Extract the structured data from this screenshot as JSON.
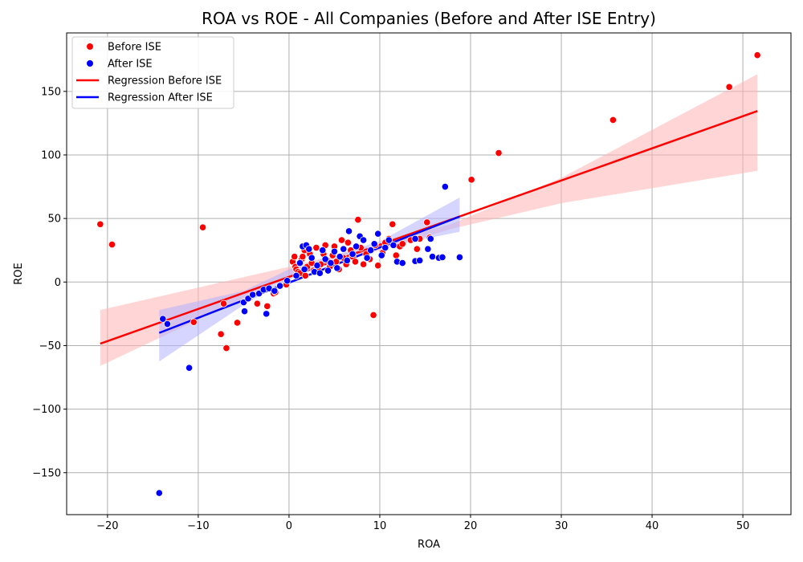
{
  "chart_data": {
    "type": "scatter",
    "title": "ROA vs ROE - All Companies (Before and After ISE Entry)",
    "xlabel": "ROA",
    "ylabel": "ROE",
    "xlim": [
      -24.5,
      55.3
    ],
    "ylim": [
      -183,
      196
    ],
    "xticks": [
      -20,
      -10,
      0,
      10,
      20,
      30,
      40,
      50
    ],
    "yticks": [
      -150,
      -100,
      -50,
      0,
      50,
      100,
      150
    ],
    "xtick_labels": [
      "−20",
      "−10",
      "0",
      "10",
      "20",
      "30",
      "40",
      "50"
    ],
    "ytick_labels": [
      "−150",
      "−100",
      "−50",
      "0",
      "50",
      "100",
      "150"
    ],
    "grid": true,
    "legend_position": "top-left",
    "legend": [
      {
        "label": "Before ISE",
        "kind": "point",
        "color": "#ff0000"
      },
      {
        "label": "After ISE",
        "kind": "point",
        "color": "#0000ff"
      },
      {
        "label": "Regression Before ISE",
        "kind": "line",
        "color": "#ff0000"
      },
      {
        "label": "Regression After ISE",
        "kind": "line",
        "color": "#0000ff"
      }
    ],
    "series": [
      {
        "name": "Before ISE",
        "kind": "scatter",
        "color": "#ff0000",
        "points": [
          [
            -20.8,
            45.5
          ],
          [
            -19.5,
            29.5
          ],
          [
            -9.5,
            43
          ],
          [
            -10.5,
            -31.5
          ],
          [
            -7.5,
            -41
          ],
          [
            -7.2,
            -17
          ],
          [
            -6.9,
            -52
          ],
          [
            -5.7,
            -32
          ],
          [
            -3.5,
            -17
          ],
          [
            -2.4,
            -19
          ],
          [
            -1.7,
            -9
          ],
          [
            -1.5,
            -8
          ],
          [
            -0.3,
            -2
          ],
          [
            0.4,
            16
          ],
          [
            0.6,
            20
          ],
          [
            0.7,
            12
          ],
          [
            0.8,
            10
          ],
          [
            1.0,
            8
          ],
          [
            1.2,
            7
          ],
          [
            1.4,
            18
          ],
          [
            1.5,
            20
          ],
          [
            1.7,
            25
          ],
          [
            1.8,
            5
          ],
          [
            2.0,
            12
          ],
          [
            2.3,
            22
          ],
          [
            2.5,
            15
          ],
          [
            2.7,
            9
          ],
          [
            3.0,
            27
          ],
          [
            3.2,
            11
          ],
          [
            3.5,
            14
          ],
          [
            3.8,
            22
          ],
          [
            4.0,
            29
          ],
          [
            4.2,
            17
          ],
          [
            4.5,
            12
          ],
          [
            4.8,
            21
          ],
          [
            5.0,
            28
          ],
          [
            5.2,
            16
          ],
          [
            5.5,
            10
          ],
          [
            5.8,
            33
          ],
          [
            6.0,
            19
          ],
          [
            6.3,
            14
          ],
          [
            6.5,
            31
          ],
          [
            6.8,
            25
          ],
          [
            7.0,
            20
          ],
          [
            7.3,
            16
          ],
          [
            7.6,
            49
          ],
          [
            7.9,
            27
          ],
          [
            8.2,
            14
          ],
          [
            8.5,
            22
          ],
          [
            8.9,
            18
          ],
          [
            9.3,
            -26
          ],
          [
            9.5,
            29
          ],
          [
            9.8,
            13
          ],
          [
            10.3,
            23
          ],
          [
            10.6,
            31
          ],
          [
            11.0,
            34
          ],
          [
            11.4,
            45.5
          ],
          [
            11.8,
            21
          ],
          [
            12.2,
            28
          ],
          [
            12.5,
            30
          ],
          [
            13.4,
            33
          ],
          [
            14.1,
            26
          ],
          [
            14.4,
            34
          ],
          [
            15.2,
            47
          ],
          [
            15.5,
            35
          ],
          [
            20.1,
            80.5
          ],
          [
            23.1,
            101.5
          ],
          [
            35.7,
            127.5
          ],
          [
            48.5,
            153.5
          ],
          [
            51.6,
            178.5
          ]
        ]
      },
      {
        "name": "After ISE",
        "kind": "scatter",
        "color": "#0000ff",
        "points": [
          [
            -14.3,
            -166
          ],
          [
            -11.0,
            -67.5
          ],
          [
            -13.9,
            -29
          ],
          [
            -13.4,
            -33
          ],
          [
            -5.0,
            -16
          ],
          [
            -4.9,
            -23
          ],
          [
            -4.5,
            -13
          ],
          [
            -4.0,
            -10
          ],
          [
            -3.3,
            -9
          ],
          [
            -2.8,
            -6
          ],
          [
            -2.5,
            -25
          ],
          [
            -2.2,
            -5
          ],
          [
            -1.6,
            -7
          ],
          [
            -1.0,
            -3
          ],
          [
            -0.2,
            1
          ],
          [
            0.8,
            5
          ],
          [
            1.2,
            15
          ],
          [
            1.5,
            28
          ],
          [
            1.7,
            10
          ],
          [
            1.9,
            29
          ],
          [
            2.2,
            26
          ],
          [
            2.5,
            19
          ],
          [
            2.8,
            8
          ],
          [
            3.1,
            13
          ],
          [
            3.4,
            7
          ],
          [
            3.7,
            25
          ],
          [
            4.0,
            18
          ],
          [
            4.3,
            9
          ],
          [
            4.6,
            15
          ],
          [
            5.0,
            24
          ],
          [
            5.3,
            11
          ],
          [
            5.6,
            20
          ],
          [
            6.0,
            26
          ],
          [
            6.4,
            17
          ],
          [
            6.6,
            40
          ],
          [
            7.0,
            22
          ],
          [
            7.4,
            28
          ],
          [
            7.8,
            36
          ],
          [
            8.2,
            33
          ],
          [
            8.6,
            19
          ],
          [
            9.0,
            25
          ],
          [
            9.4,
            30
          ],
          [
            9.8,
            38
          ],
          [
            10.2,
            21
          ],
          [
            10.6,
            27
          ],
          [
            11.0,
            33
          ],
          [
            11.5,
            29
          ],
          [
            11.9,
            16
          ],
          [
            12.5,
            15
          ],
          [
            13.9,
            34
          ],
          [
            13.9,
            16.5
          ],
          [
            14.4,
            17
          ],
          [
            15.3,
            26
          ],
          [
            15.6,
            34
          ],
          [
            15.8,
            20
          ],
          [
            16.5,
            19
          ],
          [
            16.9,
            19.5
          ],
          [
            17.2,
            75
          ],
          [
            18.8,
            19.5
          ]
        ]
      },
      {
        "name": "Regression Before ISE",
        "kind": "regression",
        "color": "#ff0000",
        "fill": "#ffb3b3",
        "line": [
          [
            -20.8,
            -48.5
          ],
          [
            51.6,
            134.5
          ]
        ],
        "ci_upper": [
          [
            -20.8,
            -22
          ],
          [
            0,
            12
          ],
          [
            10,
            30
          ],
          [
            18,
            46
          ],
          [
            30,
            82
          ],
          [
            51.6,
            163.5
          ]
        ],
        "ci_lower": [
          [
            -20.8,
            -66
          ],
          [
            0,
            4
          ],
          [
            10,
            25
          ],
          [
            18,
            42
          ],
          [
            30,
            62
          ],
          [
            51.6,
            87.5
          ]
        ]
      },
      {
        "name": "Regression After ISE",
        "kind": "regression",
        "color": "#0000ff",
        "fill": "#b3b3ff",
        "line": [
          [
            -14.3,
            -40
          ],
          [
            18.8,
            51.5
          ]
        ],
        "ci_upper": [
          [
            -14.3,
            -22
          ],
          [
            -5,
            -7
          ],
          [
            0,
            10
          ],
          [
            5,
            21
          ],
          [
            10,
            32
          ],
          [
            18.8,
            66.5
          ]
        ],
        "ci_lower": [
          [
            -14.3,
            -62.5
          ],
          [
            -5,
            -18
          ],
          [
            0,
            2
          ],
          [
            5,
            16
          ],
          [
            10,
            27
          ],
          [
            18.8,
            39.5
          ]
        ]
      }
    ]
  }
}
